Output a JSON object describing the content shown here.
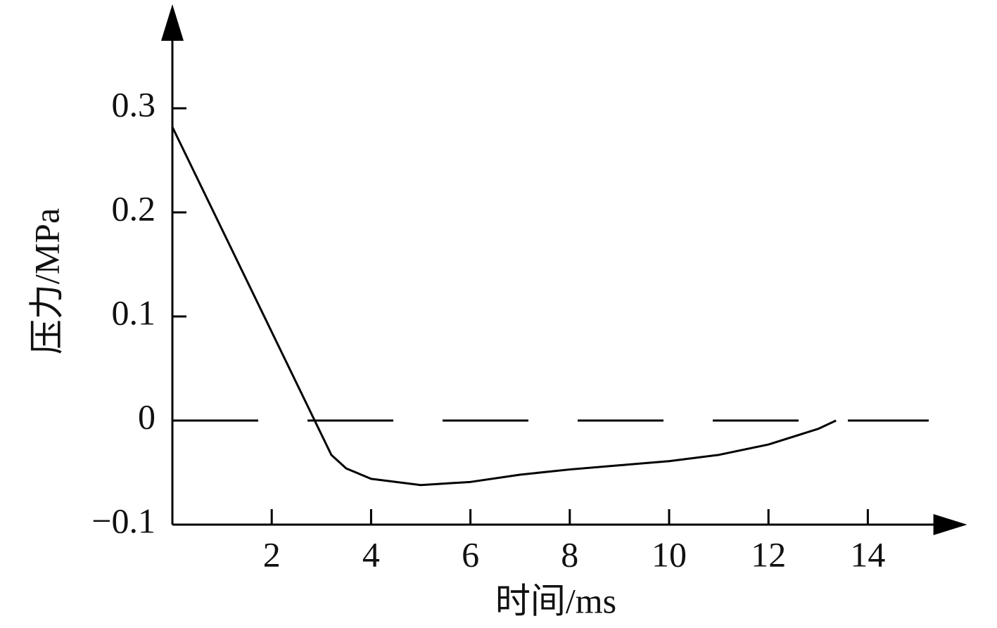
{
  "chart_data": {
    "type": "line",
    "x_label": "时间/ms",
    "y_label": "压力/MPa",
    "x": [
      0,
      3.2,
      3.5,
      4,
      5,
      6,
      7,
      8,
      9,
      10,
      11,
      12,
      13,
      13.36
    ],
    "series": [
      {
        "color": "#000000",
        "values": [
          0.282,
          -0.033,
          -0.046,
          -0.056,
          -0.062,
          -0.059,
          -0.052,
          -0.047,
          -0.043,
          -0.039,
          -0.033,
          -0.023,
          -0.008,
          0
        ]
      }
    ],
    "xlim": [
      0,
      16
    ],
    "ylim": [
      -0.1,
      0.4
    ],
    "xticks": [
      2,
      4,
      6,
      8,
      10,
      12,
      14
    ],
    "yticks": [
      {
        "value": -0.1,
        "label": "−0.1"
      },
      0,
      0.1,
      0.2,
      0.3
    ],
    "reference_line": {
      "y": 0,
      "style": "dashed"
    }
  }
}
